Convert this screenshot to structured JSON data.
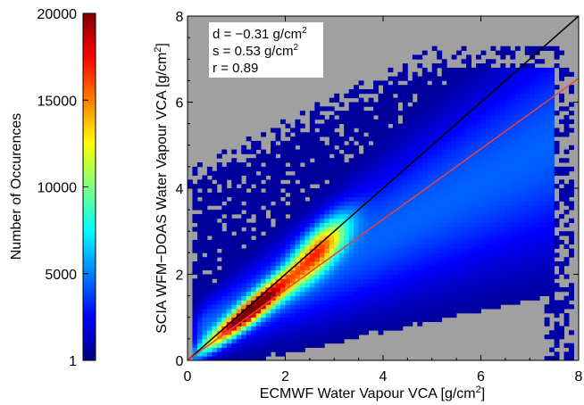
{
  "chart_data": [
    {
      "type": "heatmap",
      "title": "",
      "xlabel": "ECMWF Water Vapour VCA [g/cm",
      "xlabel_sup": "2",
      "xlabel_tail": "]",
      "ylabel": "SCIA WFM−DOAS Water Vapour VCA [g/cm",
      "ylabel_sup": "2",
      "ylabel_tail": "]",
      "xlim": [
        0,
        8
      ],
      "ylim": [
        0,
        8
      ],
      "xticks": [
        "0",
        "2",
        "4",
        "6",
        "8"
      ],
      "yticks": [
        "0",
        "2",
        "4",
        "6",
        "8"
      ],
      "background_color": "#a0a0a0",
      "density_description": "2D histogram of occurrence counts; high-density core along the 1:1 line between x≈0.3–2.5; spread widens with increasing x",
      "reference_lines": [
        {
          "label": "1:1 line",
          "color": "#000000",
          "points": [
            [
              0,
              0
            ],
            [
              8,
              8
            ]
          ]
        },
        {
          "label": "regression fit",
          "color": "#e8423a",
          "points": [
            [
              0,
              0
            ],
            [
              8,
              6.55
            ]
          ]
        }
      ],
      "annotations": {
        "line1": "d = −0.31 g/cm",
        "line1_sup": "2",
        "line2": "s = 0.53 g/cm",
        "line2_sup": "2",
        "line3": "r = 0.89"
      },
      "statistics": {
        "d": -0.31,
        "s": 0.53,
        "r": 0.89,
        "units": "g/cm2"
      }
    },
    {
      "type": "colorbar",
      "label": "Number of Occurences",
      "range": [
        1,
        20000
      ],
      "ticks": [
        "20000",
        "15000",
        "10000",
        "5000",
        "1"
      ],
      "tick_values": [
        20000,
        15000,
        10000,
        5000,
        1
      ],
      "colormap": [
        "#00007f",
        "#0000ff",
        "#007fff",
        "#00ffff",
        "#7fff7f",
        "#ffff00",
        "#ff7f00",
        "#ff0000",
        "#7f0000"
      ]
    }
  ]
}
